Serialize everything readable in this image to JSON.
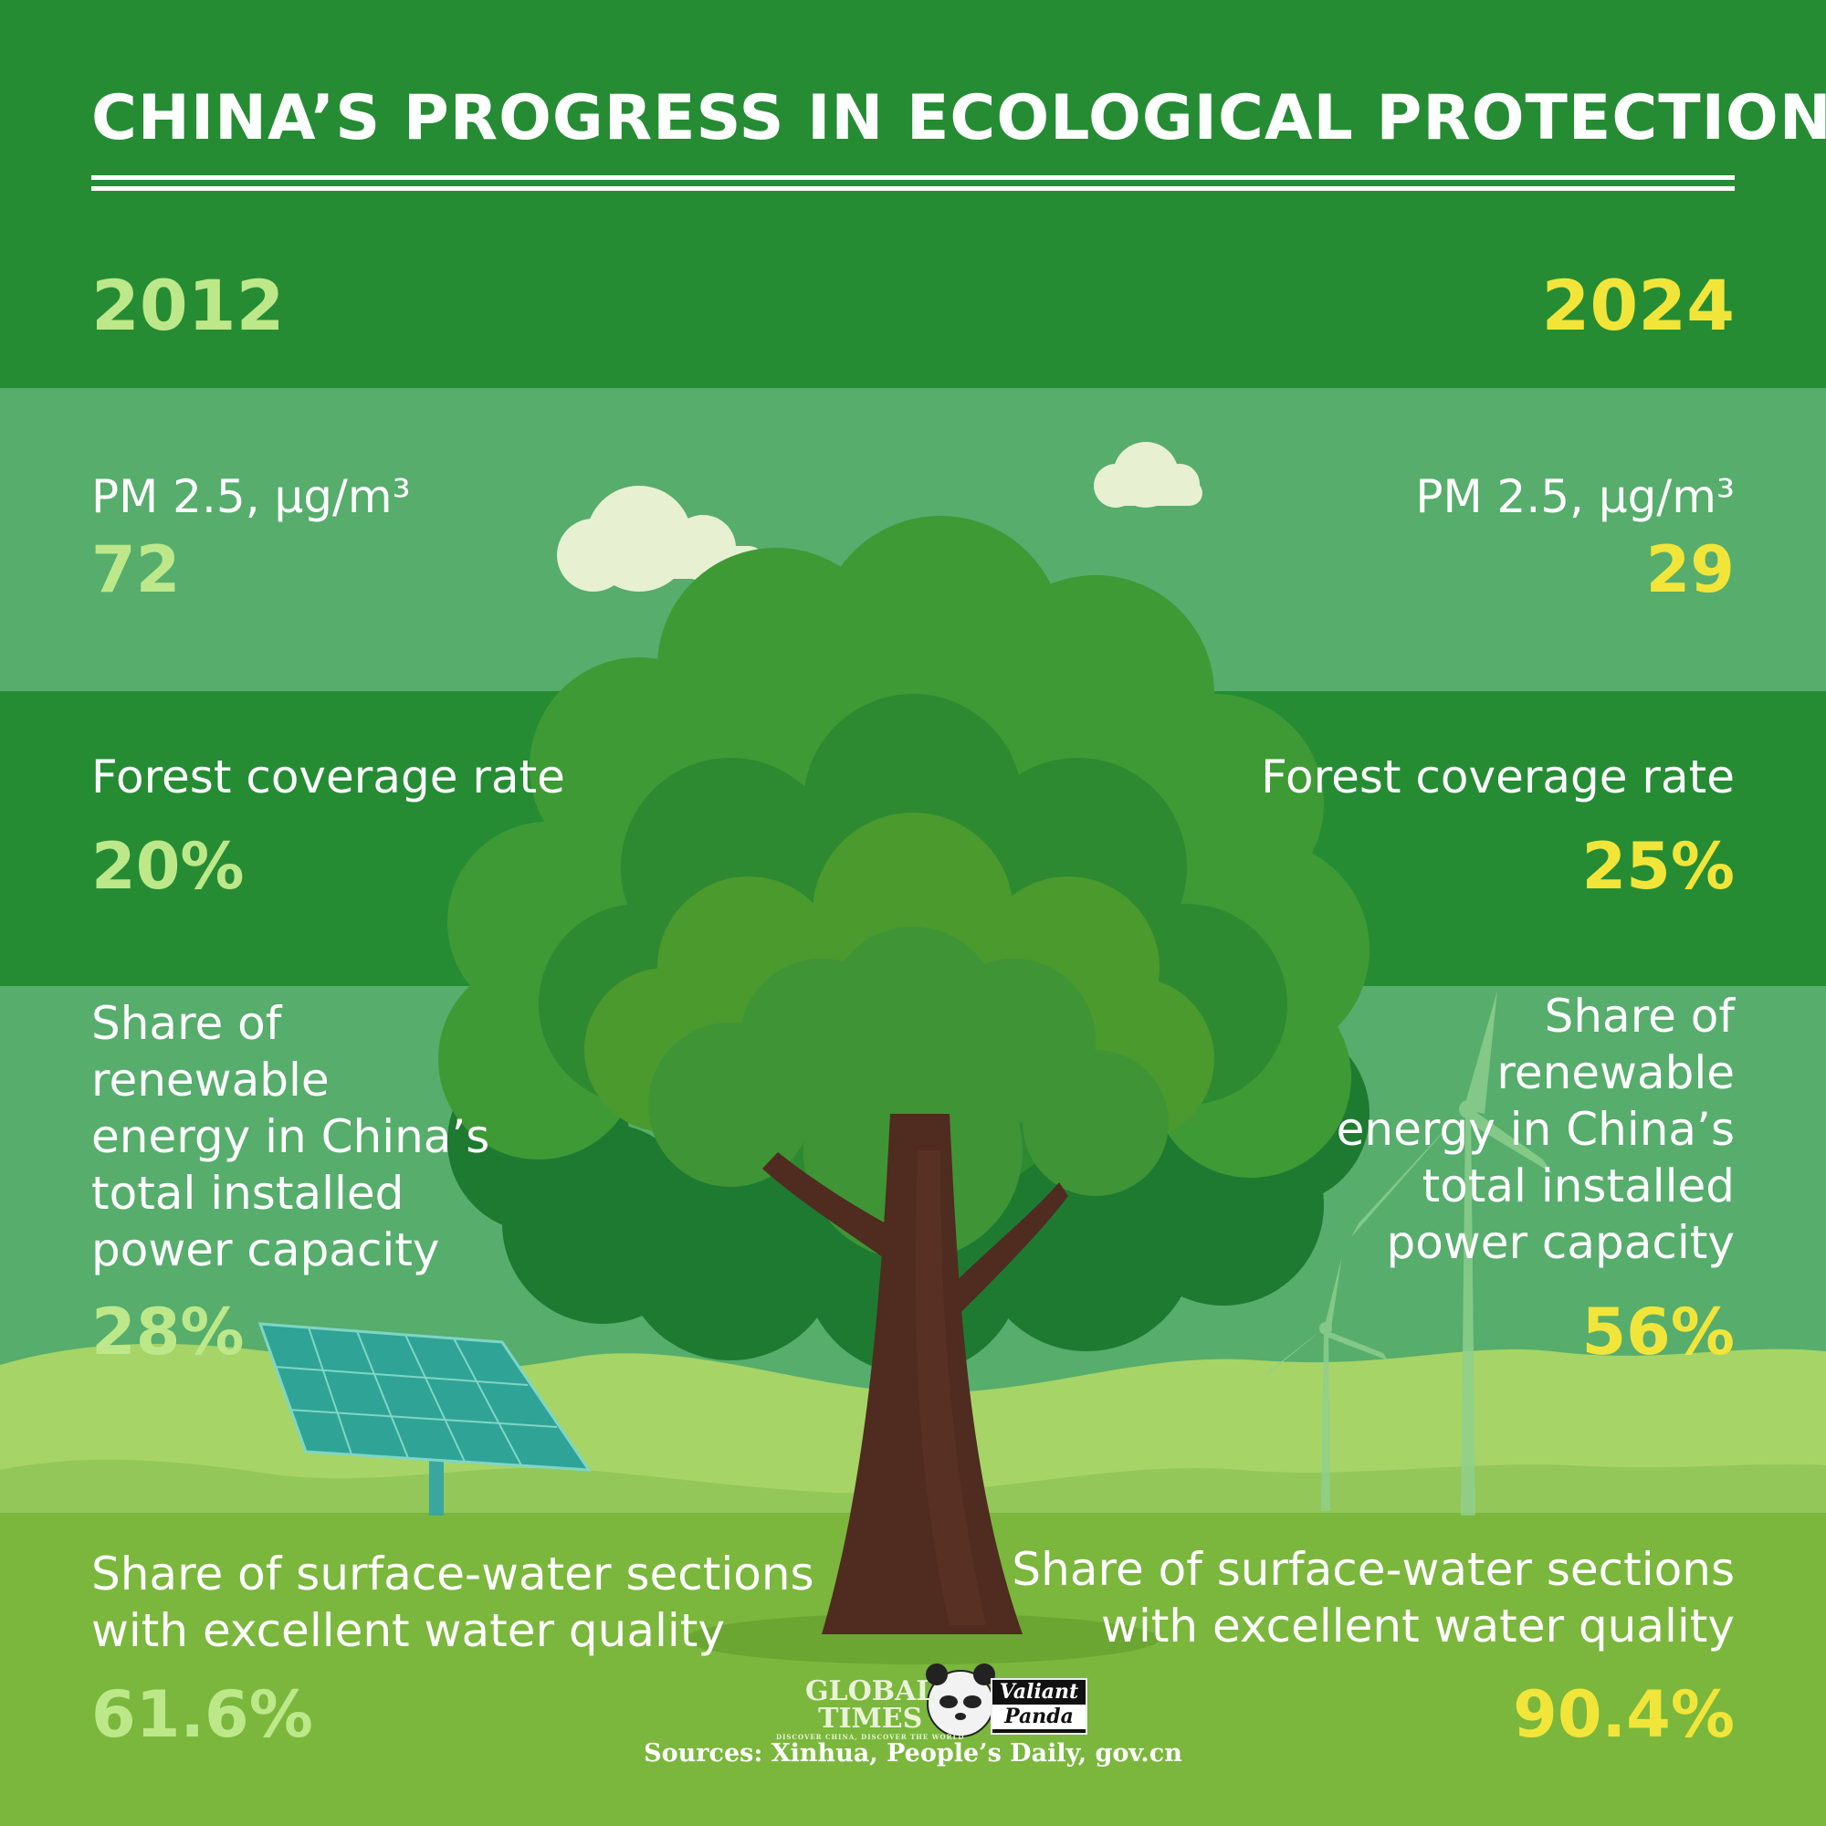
{
  "title": "CHINA’S PROGRESS IN ECOLOGICAL PROTECTION",
  "years": {
    "left": "2012",
    "right": "2024"
  },
  "metrics": [
    {
      "label": "PM 2.5, μg/m³",
      "value_2012": "72",
      "value_2024": "29"
    },
    {
      "label": "Forest coverage rate",
      "value_2012": "20%",
      "value_2024": "25%"
    },
    {
      "label_lines": [
        "Share of",
        "renewable",
        "energy in China’s",
        "total installed",
        "power capacity"
      ],
      "value_2012": "28%",
      "value_2024": "56%"
    },
    {
      "label_lines": [
        "Share of surface-water sections",
        "with excellent water quality"
      ],
      "value_2012": "61.6%",
      "value_2024": "90.4%"
    }
  ],
  "logos": {
    "global_times": [
      "GLOBAL",
      "TIMES"
    ],
    "global_times_tagline": "DISCOVER CHINA, DISCOVER THE WORLD",
    "valiant_panda": [
      "Valiant",
      "Panda"
    ]
  },
  "sources": "Sources: Xinhua, People’s Daily, gov.cn",
  "colors": {
    "band_dark": "#258c34",
    "band_light": "#56ad6c",
    "ground": "#7ab73c",
    "value_2012": "#bde88a",
    "value_2024": "#f2e53a",
    "trunk": "#4f2b20"
  },
  "icons": [
    "tree-illustration",
    "cloud-icon",
    "solar-panel-icon",
    "wind-turbine-icon",
    "panda-icon"
  ]
}
